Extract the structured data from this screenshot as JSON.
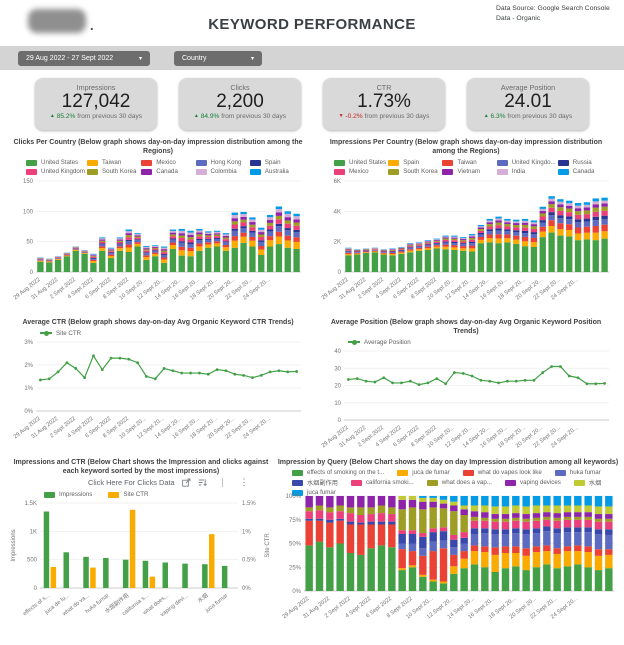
{
  "header": {
    "title": "KEYWORD PERFORMANCE",
    "datasource_line1": "Data Source: Google Search Console",
    "datasource_line2": "Data - Organic"
  },
  "filters": {
    "date_range": "29 Aug 2022 - 27 Sept 2022",
    "country": "Country"
  },
  "scorecards": [
    {
      "label": "Impressions",
      "value": "127,042",
      "arrow": "▲",
      "delta": "85.2%",
      "dir": "up",
      "suffix": "from previous 30 days"
    },
    {
      "label": "Clicks",
      "value": "2,200",
      "arrow": "▲",
      "delta": "84.9%",
      "dir": "up",
      "suffix": "from previous 30 days"
    },
    {
      "label": "CTR",
      "value": "1.73%",
      "arrow": "▼",
      "delta": "-0.2%",
      "dir": "down",
      "suffix": "from previous 30 days"
    },
    {
      "label": "Average Position",
      "value": "24.01",
      "arrow": "▲",
      "delta": "6.3%",
      "dir": "up",
      "suffix": "from previous 30 days"
    }
  ],
  "colors": {
    "positive": "#188038",
    "negative": "#c5221f",
    "filter_pill": "#6d6d6d",
    "card_bg": "#d9d9d9"
  },
  "chart_data": [
    {
      "type": "bar",
      "stacked": true,
      "title": "Clicks Per Country (Below graph shows day-on-day impression distribution among the Regions)",
      "legend": [
        {
          "label": "United States",
          "color": "#43A047"
        },
        {
          "label": "Taiwan",
          "color": "#F9AB00"
        },
        {
          "label": "Mexico",
          "color": "#EA4335"
        },
        {
          "label": "Hong Kong",
          "color": "#5C6BC0"
        },
        {
          "label": "Spain",
          "color": "#283593"
        },
        {
          "label": "United Kingdom",
          "color": "#EC407A"
        },
        {
          "label": "South Korea",
          "color": "#9E9D24"
        },
        {
          "label": "Canada",
          "color": "#8E24AA"
        },
        {
          "label": "Colombia",
          "color": "#D5AED5"
        },
        {
          "label": "Australia",
          "color": "#039BE5"
        }
      ],
      "ylim": [
        0,
        150
      ],
      "yticks": [
        0,
        50,
        100,
        150
      ],
      "ytick_labels": [
        "0",
        "50",
        "100",
        "150"
      ],
      "x_tick_labels": [
        "29 Aug 2022",
        "31 Aug 2022",
        "2 Sept 2022",
        "4 Sept 2022",
        "6 Sept 2022",
        "8 Sept 2022",
        "10 Sept 20...",
        "12 Sept 20...",
        "14 Sept 20...",
        "16 Sept 20...",
        "18 Sept 20...",
        "20 Sept 20...",
        "22 Sept 20...",
        "24 Sept 20..."
      ],
      "totals": [
        24,
        22,
        26,
        32,
        42,
        36,
        30,
        57,
        40,
        57,
        70,
        64,
        43,
        44,
        42,
        70,
        71,
        68,
        71,
        67,
        68,
        64,
        98,
        99,
        90,
        73,
        94,
        108,
        100,
        96
      ],
      "base_series_values": [
        17,
        16,
        20,
        26,
        35,
        30,
        15,
        35,
        23,
        35,
        33,
        42,
        20,
        26,
        15,
        38,
        27,
        26,
        35,
        40,
        42,
        35,
        40,
        48,
        42,
        28,
        42,
        46,
        40,
        38
      ],
      "other_weights": [
        0.2,
        0.13,
        0.15,
        0.06,
        0.12,
        0.09,
        0.09,
        0.09,
        0.07
      ]
    },
    {
      "type": "bar",
      "stacked": true,
      "title": "Impressions Per Country (Below graph shows day-on-day impression distribution among the Regions)",
      "legend": [
        {
          "label": "United States",
          "color": "#43A047"
        },
        {
          "label": "Spain",
          "color": "#F9AB00"
        },
        {
          "label": "Taiwan",
          "color": "#EA4335"
        },
        {
          "label": "United Kingdo...",
          "color": "#5C6BC0"
        },
        {
          "label": "Russia",
          "color": "#283593"
        },
        {
          "label": "Mexico",
          "color": "#EC407A"
        },
        {
          "label": "South Korea",
          "color": "#9E9D24"
        },
        {
          "label": "Vietnam",
          "color": "#8E24AA"
        },
        {
          "label": "India",
          "color": "#D5AED5"
        },
        {
          "label": "Canada",
          "color": "#039BE5"
        }
      ],
      "ylim": [
        0,
        6000
      ],
      "yticks": [
        0,
        2000,
        4000,
        6000
      ],
      "ytick_labels": [
        "0",
        "2K",
        "4K",
        "6K"
      ],
      "x_tick_labels": [
        "29 Aug 2022",
        "31 Aug 2022",
        "2 Sept 2022",
        "4 Sept 2022",
        "6 Sept 2022",
        "8 Sept 2022",
        "10 Sept 20...",
        "12 Sept 20...",
        "14 Sept 20...",
        "16 Sept 20...",
        "18 Sept 20...",
        "20 Sept 20...",
        "22 Sept 20...",
        "24 Sept 20..."
      ],
      "totals": [
        1600,
        1500,
        1550,
        1600,
        1500,
        1550,
        1650,
        1900,
        1950,
        2100,
        2200,
        2400,
        2400,
        2300,
        2500,
        3100,
        3500,
        3650,
        3500,
        3450,
        3500,
        3400,
        4300,
        5000,
        4800,
        4700,
        4550,
        4600,
        4850,
        4900
      ],
      "base_series_values": [
        1100,
        1150,
        1250,
        1300,
        1150,
        1100,
        1200,
        1300,
        1400,
        1450,
        1550,
        1500,
        1450,
        1400,
        1350,
        1900,
        1950,
        1900,
        1950,
        1850,
        1700,
        1650,
        2300,
        2600,
        2400,
        2350,
        2100,
        2150,
        2100,
        2200
      ],
      "other_weights": [
        0.18,
        0.16,
        0.14,
        0.08,
        0.12,
        0.1,
        0.08,
        0.07,
        0.07
      ]
    },
    {
      "type": "line",
      "title": "Average CTR (Below graph shows day-on-day Avg Organic Keyword CTR Trends)",
      "legend": [
        {
          "label": "Site CTR",
          "color": "#43A047"
        }
      ],
      "ylim": [
        0,
        3
      ],
      "yticks": [
        0,
        1,
        2,
        3
      ],
      "ytick_labels": [
        "0%",
        "1%",
        "2%",
        "3%"
      ],
      "x_tick_labels": [
        "29 Aug 2022",
        "31 Aug 2022",
        "2 Sept 2022",
        "4 Sept 2022",
        "6 Sept 2022",
        "8 Sept 2022",
        "10 Sept 20...",
        "12 Sept 20...",
        "14 Sept 20...",
        "16 Sept 20...",
        "18 Sept 20...",
        "20 Sept 20...",
        "22 Sept 20...",
        "24 Sept 20..."
      ],
      "values": [
        1.35,
        1.4,
        1.7,
        2.1,
        1.85,
        1.45,
        2.4,
        1.8,
        2.3,
        2.3,
        2.25,
        2.1,
        1.5,
        1.4,
        1.85,
        1.75,
        1.65,
        1.65,
        1.65,
        1.6,
        1.8,
        1.75,
        1.6,
        1.55,
        1.45,
        1.55,
        1.7,
        1.75,
        1.7,
        1.72
      ]
    },
    {
      "type": "line",
      "title": "Average Position (Below graph shows day-on-day Avg Organic Keyword Position Trends)",
      "legend": [
        {
          "label": "Average Position",
          "color": "#43A047"
        }
      ],
      "ylim": [
        0,
        40
      ],
      "yticks": [
        0,
        10,
        20,
        30,
        40
      ],
      "ytick_labels": [
        "0",
        "10",
        "20",
        "30",
        "40"
      ],
      "x_tick_labels": [
        "29 Aug 2022",
        "31 Aug 2022",
        "2 Sept 2022",
        "4 Sept 2022",
        "6 Sept 2022",
        "8 Sept 2022",
        "10 Sept 20...",
        "12 Sept 20...",
        "14 Sept 20...",
        "16 Sept 20...",
        "18 Sept 20...",
        "20 Sept 20...",
        "22 Sept 20...",
        "24 Sept 20..."
      ],
      "values": [
        23.5,
        24,
        22.5,
        22,
        24.5,
        21.5,
        21.5,
        22.5,
        20.5,
        21.5,
        24,
        21,
        27.5,
        27,
        25.5,
        23,
        22.5,
        21.5,
        22.5,
        22.5,
        23,
        23,
        27.5,
        31,
        31,
        25.5,
        24.5,
        21,
        21,
        21.2
      ]
    },
    {
      "type": "bar",
      "dual_axis": true,
      "title": "Impressions and CTR (Below Chart shows the Impression and clicks against each keyword sorted by the most impressions)",
      "toolbar_text": "Click Here For Clicks Data",
      "legend": [
        {
          "label": "Impressions",
          "color": "#43A047"
        },
        {
          "label": "Site CTR",
          "color": "#F9AB00"
        }
      ],
      "categories": [
        "effects of s...",
        "juca de fu...",
        "what do va...",
        "huka fumar",
        "水烟副作用",
        "california s...",
        "what does...",
        "vaping devi...",
        "水烟",
        "juca fumar"
      ],
      "impressions": [
        1350,
        630,
        550,
        530,
        500,
        480,
        450,
        430,
        420,
        390
      ],
      "site_ctr": [
        0.37,
        0,
        0.36,
        0,
        1.38,
        0.2,
        0,
        0,
        0.95,
        0
      ],
      "left_axis": {
        "label": "Impressions",
        "max": 1500,
        "values": [
          0,
          500,
          1000,
          1500
        ],
        "ticks": [
          "0",
          "500",
          "1K",
          "1.5K"
        ]
      },
      "right_axis": {
        "label": "Site CTR",
        "max": 1.5,
        "values": [
          0,
          0.5,
          1,
          1.5
        ],
        "ticks": [
          "0%",
          "0.5%",
          "1%",
          "1.5%"
        ]
      }
    },
    {
      "type": "bar",
      "stacked": true,
      "percent": true,
      "title": "Impression by Query (Below Chart shows the day on day Impression distribution among all keywords)",
      "legend": [
        {
          "label": "effects of smoking on the t...",
          "color": "#43A047"
        },
        {
          "label": "juca de fumar",
          "color": "#F9AB00"
        },
        {
          "label": "what do vapes look like",
          "color": "#EA4335"
        },
        {
          "label": "huka fumar",
          "color": "#5C6BC0"
        },
        {
          "label": "水烟副作用",
          "color": "#3949AB"
        },
        {
          "label": "california smoki...",
          "color": "#EC407A"
        },
        {
          "label": "what does a vap...",
          "color": "#9E9D24"
        },
        {
          "label": "vaping devices",
          "color": "#8E24AA"
        },
        {
          "label": "水烟",
          "color": "#C0CA33"
        },
        {
          "label": "juca fumar",
          "color": "#039BE5"
        }
      ],
      "ylim": [
        0,
        100
      ],
      "yticks": [
        0,
        25,
        50,
        75,
        100
      ],
      "ytick_labels": [
        "0%",
        "25%",
        "50%",
        "75%",
        "100%"
      ],
      "x_tick_labels": [
        "29 Aug 2022",
        "31 Aug 2022",
        "2 Sept 2022",
        "4 Sept 2022",
        "6 Sept 2022",
        "8 Sept 2022",
        "10 Sept 20...",
        "12 Sept 20...",
        "14 Sept 20...",
        "16 Sept 20...",
        "18 Sept 20...",
        "20 Sept 20...",
        "22 Sept 20...",
        "24 Sept 20..."
      ],
      "rows": [
        [
          48,
          0,
          26,
          0,
          2,
          8,
          4,
          12,
          0,
          0
        ],
        [
          52,
          0,
          22,
          0,
          2,
          9,
          5,
          10,
          0,
          0
        ],
        [
          46,
          0,
          26,
          0,
          3,
          8,
          5,
          12,
          0,
          0
        ],
        [
          50,
          0,
          24,
          0,
          2,
          8,
          6,
          10,
          0,
          0
        ],
        [
          40,
          0,
          30,
          0,
          3,
          9,
          6,
          12,
          0,
          0
        ],
        [
          38,
          0,
          32,
          0,
          2,
          8,
          8,
          12,
          0,
          0
        ],
        [
          45,
          0,
          25,
          0,
          3,
          8,
          7,
          12,
          0,
          0
        ],
        [
          48,
          0,
          22,
          0,
          3,
          9,
          8,
          10,
          0,
          0
        ],
        [
          46,
          0,
          24,
          0,
          3,
          8,
          7,
          12,
          0,
          0
        ],
        [
          22,
          2,
          20,
          6,
          10,
          4,
          22,
          10,
          4,
          0
        ],
        [
          25,
          2,
          15,
          8,
          10,
          4,
          24,
          8,
          4,
          0
        ],
        [
          15,
          2,
          20,
          8,
          12,
          4,
          25,
          8,
          4,
          2
        ],
        [
          10,
          2,
          30,
          10,
          10,
          4,
          22,
          6,
          4,
          2
        ],
        [
          8,
          2,
          35,
          8,
          10,
          4,
          20,
          5,
          4,
          4
        ],
        [
          18,
          8,
          12,
          8,
          8,
          5,
          25,
          6,
          4,
          6
        ],
        [
          24,
          10,
          8,
          8,
          6,
          6,
          18,
          6,
          4,
          10
        ],
        [
          28,
          14,
          6,
          12,
          6,
          8,
          4,
          6,
          6,
          10
        ],
        [
          25,
          16,
          6,
          14,
          5,
          8,
          3,
          6,
          7,
          10
        ],
        [
          20,
          18,
          8,
          14,
          5,
          8,
          3,
          5,
          8,
          11
        ],
        [
          24,
          16,
          7,
          13,
          5,
          8,
          3,
          5,
          8,
          11
        ],
        [
          26,
          14,
          7,
          14,
          5,
          8,
          3,
          5,
          8,
          10
        ],
        [
          22,
          15,
          8,
          15,
          5,
          8,
          3,
          5,
          8,
          11
        ],
        [
          25,
          16,
          6,
          14,
          5,
          8,
          3,
          5,
          8,
          10
        ],
        [
          28,
          14,
          6,
          15,
          5,
          7,
          3,
          5,
          7,
          10
        ],
        [
          24,
          15,
          6,
          16,
          5,
          8,
          3,
          5,
          8,
          10
        ],
        [
          26,
          16,
          5,
          15,
          5,
          8,
          3,
          5,
          7,
          10
        ],
        [
          28,
          14,
          6,
          14,
          5,
          8,
          3,
          5,
          7,
          10
        ],
        [
          25,
          16,
          6,
          15,
          5,
          8,
          3,
          5,
          7,
          10
        ],
        [
          22,
          15,
          7,
          16,
          5,
          8,
          3,
          5,
          8,
          11
        ],
        [
          24,
          14,
          6,
          15,
          6,
          8,
          3,
          5,
          8,
          11
        ]
      ]
    }
  ]
}
